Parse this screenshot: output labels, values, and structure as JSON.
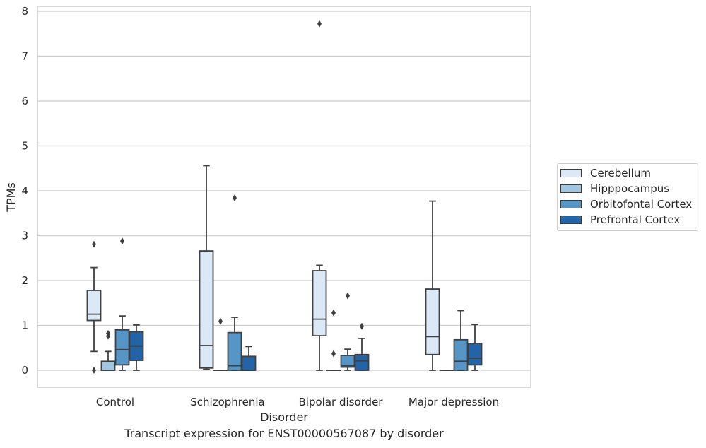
{
  "chart_data": {
    "type": "box",
    "title": "Transcript expression for ENST00000567087 by disorder",
    "xlabel": "Disorder",
    "ylabel": "TPMs",
    "ylim": [
      -0.37,
      8.15
    ],
    "yticks": [
      0,
      1,
      2,
      3,
      4,
      5,
      6,
      7,
      8
    ],
    "categories": [
      "Control",
      "Schizophrenia",
      "Bipolar disorder",
      "Major depression"
    ],
    "grid": true,
    "legend_position": "right",
    "series": [
      {
        "name": "Cerebellum",
        "color": "#dbe8f5",
        "boxes": [
          {
            "whislo": 0.42,
            "q1": 1.11,
            "med": 1.25,
            "q3": 1.78,
            "whishi": 2.29,
            "fliers": [
              2.81,
              0.0
            ]
          },
          {
            "whislo": 0.02,
            "q1": 0.05,
            "med": 0.55,
            "q3": 2.66,
            "whishi": 4.56,
            "fliers": []
          },
          {
            "whislo": 0.0,
            "q1": 0.77,
            "med": 1.14,
            "q3": 2.22,
            "whishi": 2.34,
            "fliers": [
              7.72
            ]
          },
          {
            "whislo": 0.0,
            "q1": 0.35,
            "med": 0.75,
            "q3": 1.81,
            "whishi": 3.77,
            "fliers": []
          }
        ]
      },
      {
        "name": "Hipppocampus",
        "color": "#9fc7e2",
        "boxes": [
          {
            "whislo": 0.0,
            "q1": 0.0,
            "med": 0.0,
            "q3": 0.2,
            "whishi": 0.42,
            "fliers": [
              0.82,
              0.76
            ]
          },
          {
            "whislo": 0.0,
            "q1": 0.0,
            "med": 0.0,
            "q3": 0.0,
            "whishi": 0.0,
            "fliers": [
              1.09
            ]
          },
          {
            "whislo": 0.0,
            "q1": 0.0,
            "med": 0.0,
            "q3": 0.0,
            "whishi": 0.0,
            "fliers": [
              1.28,
              0.37
            ]
          },
          {
            "whislo": 0.0,
            "q1": 0.0,
            "med": 0.0,
            "q3": 0.0,
            "whishi": 0.0,
            "fliers": []
          }
        ]
      },
      {
        "name": "Orbitofontal Cortex",
        "color": "#5596c7",
        "boxes": [
          {
            "whislo": 0.0,
            "q1": 0.12,
            "med": 0.46,
            "q3": 0.9,
            "whishi": 1.21,
            "fliers": [
              2.88
            ]
          },
          {
            "whislo": 0.0,
            "q1": 0.0,
            "med": 0.1,
            "q3": 0.84,
            "whishi": 1.18,
            "fliers": [
              3.84
            ]
          },
          {
            "whislo": 0.0,
            "q1": 0.07,
            "med": 0.1,
            "q3": 0.33,
            "whishi": 0.47,
            "fliers": [
              1.66
            ]
          },
          {
            "whislo": 0.0,
            "q1": 0.0,
            "med": 0.2,
            "q3": 0.68,
            "whishi": 1.33,
            "fliers": []
          }
        ]
      },
      {
        "name": "Prefrontal Cortex",
        "color": "#2264a8",
        "boxes": [
          {
            "whislo": 0.0,
            "q1": 0.22,
            "med": 0.54,
            "q3": 0.86,
            "whishi": 1.01,
            "fliers": []
          },
          {
            "whislo": 0.0,
            "q1": 0.0,
            "med": 0.0,
            "q3": 0.31,
            "whishi": 0.53,
            "fliers": []
          },
          {
            "whislo": 0.0,
            "q1": 0.0,
            "med": 0.21,
            "q3": 0.35,
            "whishi": 0.71,
            "fliers": [
              0.98
            ]
          },
          {
            "whislo": 0.0,
            "q1": 0.12,
            "med": 0.27,
            "q3": 0.6,
            "whishi": 1.02,
            "fliers": []
          }
        ]
      }
    ]
  }
}
